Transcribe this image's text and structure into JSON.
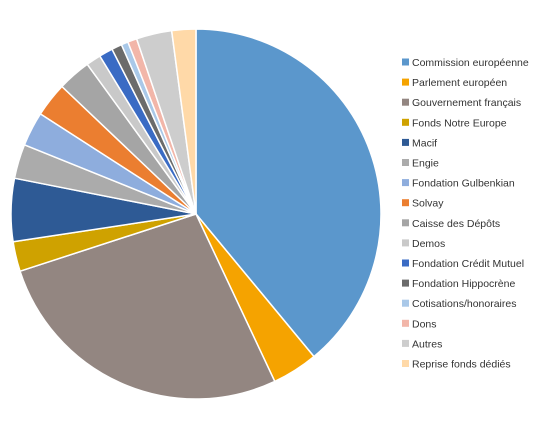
{
  "chart_data": {
    "type": "pie",
    "title": "",
    "legend_position": "right",
    "slices": [
      {
        "label": "Commission européenne",
        "value": 39.0,
        "color": "#5B97CC"
      },
      {
        "label": "Parlement européen",
        "value": 4.0,
        "color": "#F5A300"
      },
      {
        "label": "Gouvernement français",
        "value": 27.0,
        "color": "#938681"
      },
      {
        "label": "Fonds Notre Europe",
        "value": 2.6,
        "color": "#CFA200"
      },
      {
        "label": "Macif",
        "value": 5.5,
        "color": "#2E5A95"
      },
      {
        "label": "Engie",
        "value": 3.0,
        "color": "#ABABAB"
      },
      {
        "label": "Fondation Gulbenkian",
        "value": 3.0,
        "color": "#8EADDD"
      },
      {
        "label": "Solvay",
        "value": 3.0,
        "color": "#EB7E30"
      },
      {
        "label": "Caisse des Dépôts",
        "value": 2.9,
        "color": "#A5A5A5"
      },
      {
        "label": "Demos",
        "value": 1.3,
        "color": "#C9C9C9"
      },
      {
        "label": "Fondation Crédit Mutuel",
        "value": 1.2,
        "color": "#3A6BC4"
      },
      {
        "label": "Fondation Hippocrène",
        "value": 0.9,
        "color": "#6B6B6B"
      },
      {
        "label": "Cotisations/honoraires",
        "value": 0.6,
        "color": "#A9C8E8"
      },
      {
        "label": "Dons",
        "value": 0.8,
        "color": "#F2B6A9"
      },
      {
        "label": "Autres",
        "value": 3.1,
        "color": "#CDCDCD"
      },
      {
        "label": "Reprise fonds dédiés",
        "value": 2.1,
        "color": "#FFD9A8"
      }
    ]
  }
}
